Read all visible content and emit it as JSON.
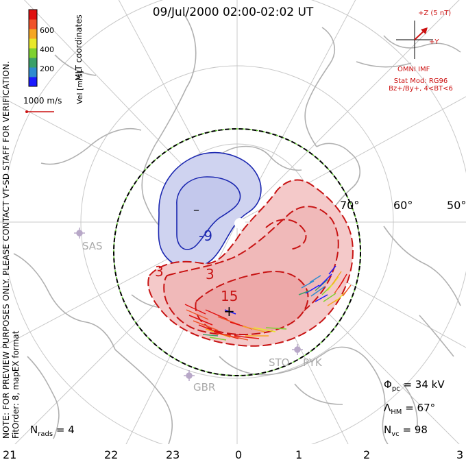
{
  "title": "09/Jul/2000 02:00-02:02 UT",
  "scale": {
    "title": "Vel [m/s]",
    "ticks": [
      "600",
      "400",
      "200"
    ],
    "colors": [
      "#1a1aff",
      "#2e8bd0",
      "#3aa069",
      "#7ed130",
      "#e8e82a",
      "#f5a623",
      "#f0532a",
      "#e01010"
    ]
  },
  "coordinates_label": "MLT coordinates",
  "vector_scale_label": "1000 m/s",
  "imf": {
    "z_label": "+Z (5 nT)",
    "y_label": "+Y",
    "source": "OMNI IMF"
  },
  "stat_model": {
    "line1": "Stat Mod: RG96",
    "line2": "Bz+/By+, 4<BT<6"
  },
  "note": "NOTE: FOR PREVIEW PURPOSES ONLY. PLEASE CONTACT VT-SD STAFF FOR VERIFICATION.",
  "fit_order": "FitOrder: 8, mapEX format",
  "latitude_labels": [
    "70°",
    "60°",
    "50°"
  ],
  "mlt_labels": [
    "21",
    "22",
    "23",
    "0",
    "1",
    "2",
    "3"
  ],
  "stations": [
    "SAS",
    "STO",
    "PYK",
    "GBR"
  ],
  "contour_labels": [
    "-9",
    "3",
    "3",
    "15"
  ],
  "symbols": {
    "min": "–",
    "max": "+"
  },
  "metrics": {
    "phi_pc": {
      "symbol": "Φ",
      "sub": "pc",
      "value": "= 34 kV"
    },
    "lambda_hm": {
      "symbol": "Λ",
      "sub": "HM",
      "value": "= 67°"
    },
    "n_vc": {
      "symbol": "N",
      "sub": "vc",
      "value": "= 98"
    },
    "n_rads": {
      "symbol": "N",
      "sub": "rads",
      "value": "= 4"
    }
  },
  "colors": {
    "negative_fill": "#cfd3f0",
    "negative_line": "#1b27b0",
    "positive_fill": "#f4c9c9",
    "positive_line": "#c81414",
    "coastline": "#b0b0b0",
    "grid": "#c8c8c8",
    "boundary": "#66cc33"
  }
}
